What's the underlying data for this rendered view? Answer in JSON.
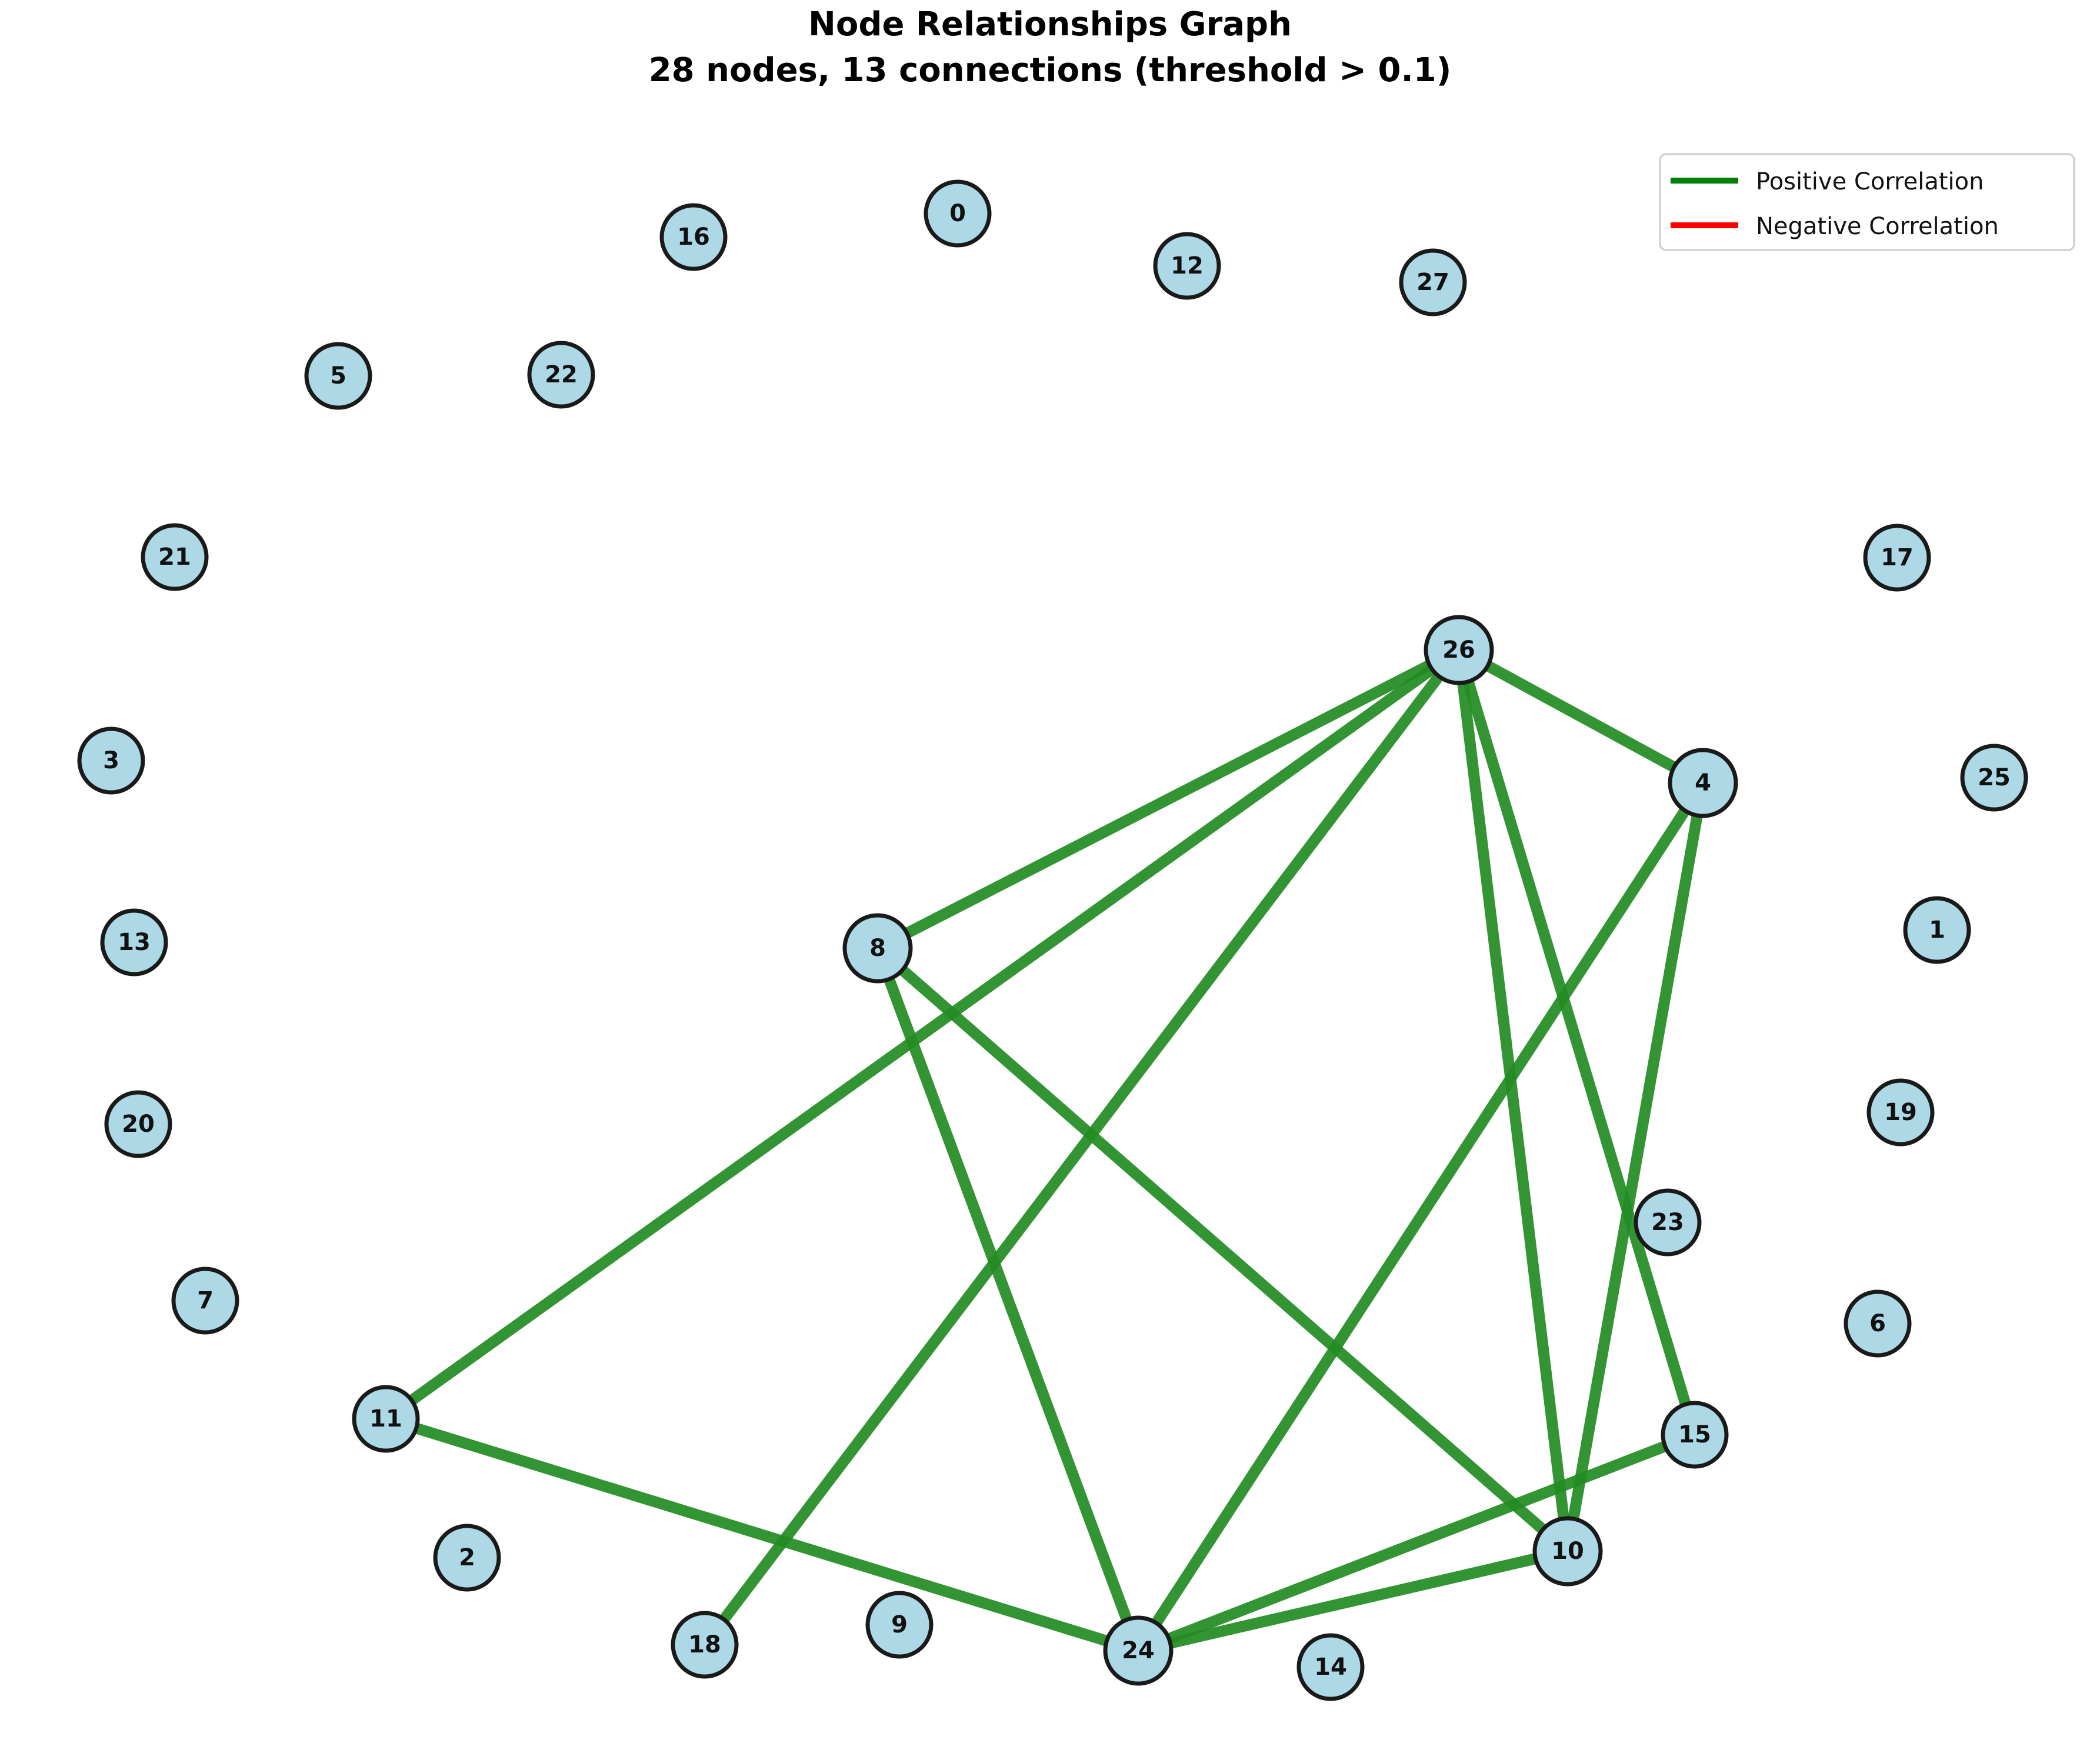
{
  "title_line1": "Node Relationships Graph",
  "title_line2": "28 nodes, 13 connections (threshold > 0.1)",
  "legend": {
    "items": [
      {
        "label": "Positive Correlation",
        "color": "#008000"
      },
      {
        "label": "Negative Correlation",
        "color": "#ff0000"
      }
    ]
  },
  "colors": {
    "positive_edge": "#228b22",
    "negative_edge": "#ff0000",
    "node_fill": "#add8e6",
    "node_stroke": "#1a1a1a"
  },
  "nodes": [
    "0",
    "1",
    "2",
    "3",
    "4",
    "5",
    "6",
    "7",
    "8",
    "9",
    "10",
    "11",
    "12",
    "13",
    "14",
    "15",
    "16",
    "17",
    "18",
    "19",
    "20",
    "21",
    "22",
    "23",
    "24",
    "25",
    "26",
    "27"
  ],
  "edges": [
    {
      "source": "26",
      "target": "8",
      "sign": "positive"
    },
    {
      "source": "26",
      "target": "11",
      "sign": "positive"
    },
    {
      "source": "26",
      "target": "18",
      "sign": "positive"
    },
    {
      "source": "26",
      "target": "4",
      "sign": "positive"
    },
    {
      "source": "26",
      "target": "10",
      "sign": "positive"
    },
    {
      "source": "26",
      "target": "15",
      "sign": "positive"
    },
    {
      "source": "4",
      "target": "24",
      "sign": "positive"
    },
    {
      "source": "4",
      "target": "10",
      "sign": "positive"
    },
    {
      "source": "8",
      "target": "24",
      "sign": "positive"
    },
    {
      "source": "8",
      "target": "10",
      "sign": "positive"
    },
    {
      "source": "11",
      "target": "24",
      "sign": "positive"
    },
    {
      "source": "24",
      "target": "15",
      "sign": "positive"
    },
    {
      "source": "24",
      "target": "10",
      "sign": "positive"
    }
  ]
}
